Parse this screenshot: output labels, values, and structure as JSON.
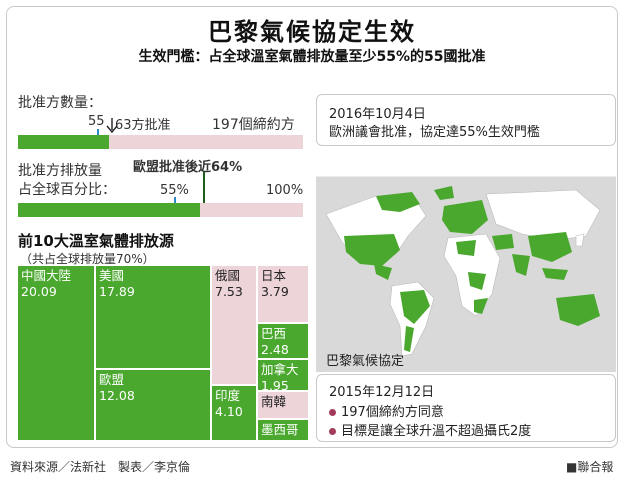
{
  "title": "巴黎氣候協定生效",
  "subtitle": "生效門檻：占全球溫室氣體排放量至少55%的55國批准",
  "parties": {
    "label": "批准方數量：",
    "threshold_label": "55",
    "current_label": "63方批准",
    "total_label": "197個締約方",
    "threshold": 55,
    "current": 63,
    "total": 197
  },
  "emissions": {
    "label_line1": "批准方排放量",
    "label_line2": "占全球百分比：",
    "note": "歐盟批准後近64%",
    "threshold_label": "55%",
    "total_label": "100%",
    "threshold": 55,
    "current": 64,
    "total": 100
  },
  "treemap": {
    "title": "前10大溫室氣體排放源",
    "subtitle": "（共占全球排放量70%）"
  },
  "map": {
    "caption": "巴黎氣候協定",
    "note1_date": "2016年10月4日",
    "note1_text": "歐洲議會批准，協定達55%生效門檻",
    "note2_date": "2015年12月12日",
    "note2_items": [
      "197個締約方同意",
      "目標是讓全球升溫不超過攝氏2度"
    ]
  },
  "footer": {
    "source": "資料來源／法新社　製表／李京倫",
    "brand": "■聯合報"
  },
  "colors": {
    "green": "#4aa82e",
    "pink": "#ecd4d8",
    "map_land": "#ffffff",
    "map_sea": "#d9d9d9",
    "bullet": "#a23a5a"
  },
  "chart_data": {
    "type": "treemap",
    "title": "前10大溫室氣體排放源",
    "subtitle": "（共占全球排放量70%）",
    "unit": "%",
    "categories": [
      "中國大陸",
      "美國",
      "歐盟",
      "俄國",
      "日本",
      "巴西",
      "加拿大",
      "印度",
      "南韓",
      "墨西哥"
    ],
    "values": [
      20.09,
      17.89,
      12.08,
      7.53,
      3.79,
      2.48,
      1.95,
      4.1,
      null,
      null
    ],
    "ratified": [
      true,
      true,
      true,
      false,
      false,
      true,
      true,
      true,
      false,
      true
    ]
  }
}
